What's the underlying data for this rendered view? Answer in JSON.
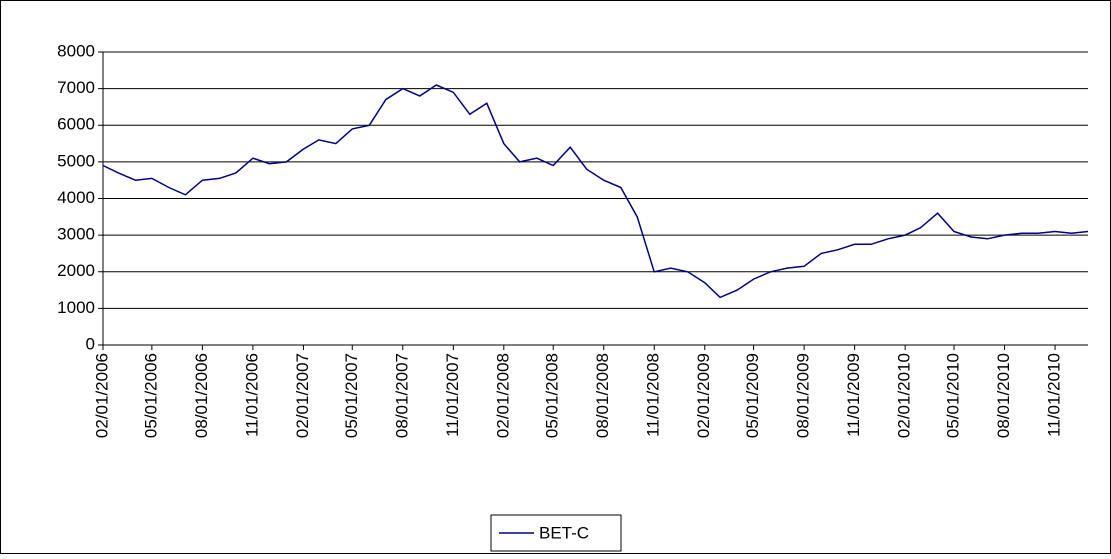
{
  "chart_data": {
    "type": "line",
    "x": [
      "02/01/2006",
      "03/01/2006",
      "04/01/2006",
      "05/01/2006",
      "06/01/2006",
      "07/01/2006",
      "08/01/2006",
      "09/01/2006",
      "10/01/2006",
      "11/01/2006",
      "12/01/2006",
      "01/01/2007",
      "02/01/2007",
      "03/01/2007",
      "04/01/2007",
      "05/01/2007",
      "06/01/2007",
      "07/01/2007",
      "08/01/2007",
      "09/01/2007",
      "10/01/2007",
      "11/01/2007",
      "12/01/2007",
      "01/01/2008",
      "02/01/2008",
      "03/01/2008",
      "04/01/2008",
      "05/01/2008",
      "06/01/2008",
      "07/01/2008",
      "08/01/2008",
      "09/01/2008",
      "10/01/2008",
      "11/01/2008",
      "12/01/2008",
      "01/01/2009",
      "02/01/2009",
      "03/01/2009",
      "04/01/2009",
      "05/01/2009",
      "06/01/2009",
      "07/01/2009",
      "08/01/2009",
      "09/01/2009",
      "10/01/2009",
      "11/01/2009",
      "12/01/2009",
      "01/01/2010",
      "02/01/2010",
      "03/01/2010",
      "04/01/2010",
      "05/01/2010",
      "06/01/2010",
      "07/01/2010",
      "08/01/2010",
      "09/01/2010",
      "10/01/2010",
      "11/01/2010",
      "12/01/2010",
      "12/31/2010"
    ],
    "series": [
      {
        "name": "BET-C",
        "color": "#000080",
        "values": [
          4900,
          4700,
          4500,
          4550,
          4300,
          4100,
          4500,
          4550,
          4700,
          5100,
          4950,
          5000,
          5350,
          5600,
          5500,
          5900,
          6000,
          6700,
          7000,
          6800,
          7100,
          6900,
          6300,
          6600,
          5500,
          5000,
          5100,
          4900,
          5400,
          4800,
          4500,
          4300,
          3500,
          2000,
          2100,
          2000,
          1700,
          1300,
          1500,
          1800,
          2000,
          2100,
          2150,
          2500,
          2600,
          2750,
          2750,
          2900,
          3000,
          3200,
          3600,
          3100,
          2950,
          2900,
          3000,
          3050,
          3050,
          3100,
          3050,
          3100
        ]
      }
    ],
    "xlim": [
      "02/01/2006",
      "12/31/2010"
    ],
    "xticks": [
      "02/01/2006",
      "05/01/2006",
      "08/01/2006",
      "11/01/2006",
      "02/01/2007",
      "05/01/2007",
      "08/01/2007",
      "11/01/2007",
      "02/01/2008",
      "05/01/2008",
      "08/01/2008",
      "11/01/2008",
      "02/01/2009",
      "05/01/2009",
      "08/01/2009",
      "11/01/2009",
      "02/01/2010",
      "05/01/2010",
      "08/01/2010",
      "11/01/2010"
    ],
    "ylim": [
      0,
      8000
    ],
    "yticks": [
      0,
      1000,
      2000,
      3000,
      4000,
      5000,
      6000,
      7000,
      8000
    ],
    "grid": true,
    "legend": "bottom"
  }
}
